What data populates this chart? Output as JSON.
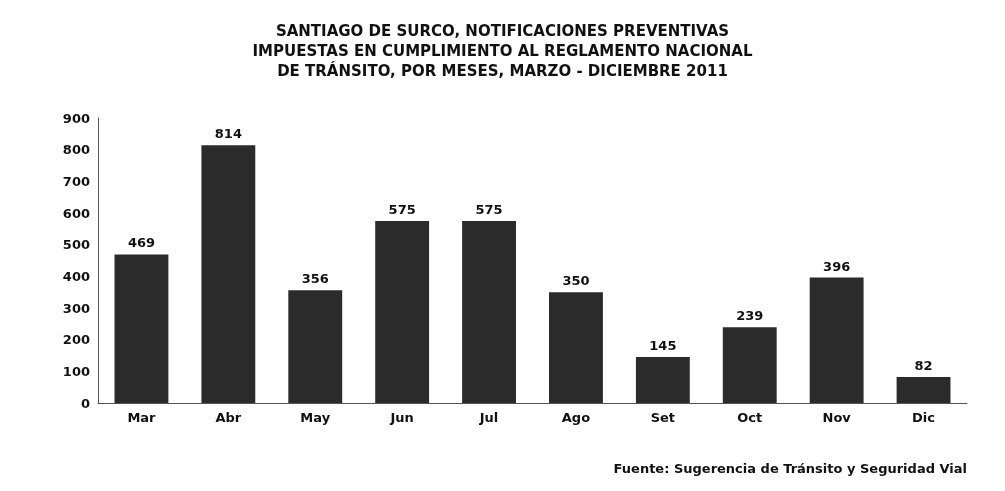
{
  "chart_data": {
    "type": "bar",
    "title": "SANTIAGO DE SURCO, NOTIFICACIONES PREVENTIVAS\nIMPUESTAS EN CUMPLIMIENTO AL REGLAMENTO NACIONAL\nDE TRÁNSITO, POR MESES, MARZO - DICIEMBRE 2011",
    "categories": [
      "Mar",
      "Abr",
      "May",
      "Jun",
      "Jul",
      "Ago",
      "Set",
      "Oct",
      "Nov",
      "Dic"
    ],
    "values": [
      469,
      814,
      356,
      575,
      575,
      350,
      145,
      239,
      396,
      82
    ],
    "color": "#2b2b2b",
    "ylim": [
      0,
      900
    ],
    "yticks": [
      0,
      100,
      200,
      300,
      400,
      500,
      600,
      700,
      800,
      900
    ],
    "data_labels": true,
    "grid": false,
    "annotations": [
      "Fuente: Sugerencia de Tránsito y Seguridad Vial"
    ]
  }
}
